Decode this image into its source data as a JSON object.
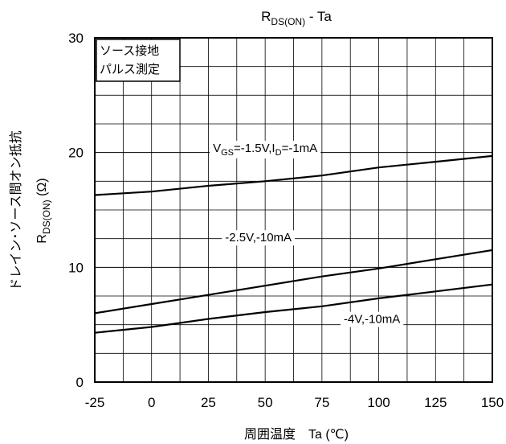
{
  "chart_data": {
    "type": "line",
    "title": "R",
    "title_sub": "DS(ON)",
    "title_rest": " - Ta",
    "xlabel": "周囲温度　Ta (℃)",
    "ylabel_line1": "ドレイン･ソース間オン抵抗",
    "ylabel_line2_main": "R",
    "ylabel_line2_sub": "DS(ON)",
    "ylabel_line2_rest": " (Ω)",
    "xlim": [
      -25,
      150
    ],
    "ylim": [
      0,
      30
    ],
    "x_ticks": [
      -25,
      0,
      25,
      50,
      75,
      100,
      125,
      150
    ],
    "x_tick_labels": [
      "-25",
      "0",
      "25",
      "50",
      "75",
      "100",
      "125",
      "150"
    ],
    "y_ticks": [
      0,
      10,
      20,
      30
    ],
    "y_tick_labels": [
      "0",
      "10",
      "20",
      "30"
    ],
    "x_minor_step": 12.5,
    "y_minor_step": 2.5,
    "grid": true,
    "legend_box": [
      "ソース接地",
      "パルス測定"
    ],
    "series": [
      {
        "label_parts": [
          [
            "V",
            ""
          ],
          [
            "GS",
            "sub"
          ],
          [
            "=-1.5V,I",
            ""
          ],
          [
            "D",
            "sub"
          ],
          [
            "=-1mA",
            ""
          ]
        ],
        "x": [
          -25,
          0,
          25,
          50,
          75,
          100,
          125,
          150
        ],
        "y": [
          16.3,
          16.6,
          17.1,
          17.5,
          18.0,
          18.7,
          19.2,
          19.7
        ],
        "label_at": [
          50,
          20.4
        ]
      },
      {
        "label_parts": [
          [
            "-2.5V,-10mA",
            ""
          ]
        ],
        "x": [
          -25,
          0,
          25,
          50,
          75,
          100,
          125,
          150
        ],
        "y": [
          6.0,
          6.8,
          7.6,
          8.4,
          9.2,
          9.9,
          10.7,
          11.5
        ],
        "label_at": [
          47,
          12.6
        ]
      },
      {
        "label_parts": [
          [
            "-4V,-10mA",
            ""
          ]
        ],
        "x": [
          -25,
          0,
          25,
          50,
          75,
          100,
          125,
          150
        ],
        "y": [
          4.3,
          4.8,
          5.5,
          6.1,
          6.6,
          7.3,
          7.9,
          8.5
        ],
        "label_at": [
          97,
          5.5
        ]
      }
    ]
  }
}
